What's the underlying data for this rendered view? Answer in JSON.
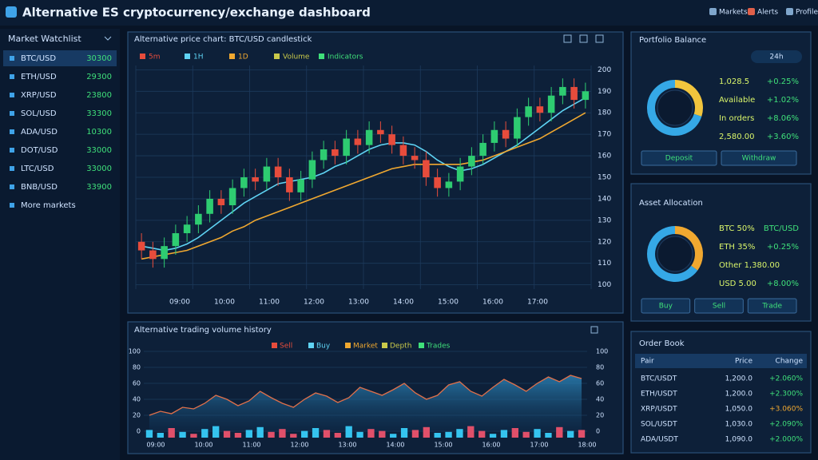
{
  "header": {
    "title": "Alternative ES cryptocurrency/exchange dashboard",
    "menu": [
      "Markets",
      "Alerts",
      "Profile"
    ]
  },
  "sidebar": {
    "title": "Market Watchlist",
    "items": [
      [
        "BTC/USD",
        "30300"
      ],
      [
        "ETH/USD",
        "29300"
      ],
      [
        "XRP/USD",
        "23800"
      ],
      [
        "SOL/USD",
        "33300"
      ],
      [
        "ADA/USD",
        "10300"
      ],
      [
        "DOT/USD",
        "33000"
      ],
      [
        "LTC/USD",
        "33000"
      ],
      [
        "BNB/USD",
        "33900"
      ],
      [
        "More markets"
      ]
    ]
  },
  "main_chart": {
    "title": "Alternative price chart: BTC/USD candlestick",
    "legend": [
      "5m",
      "1H",
      "1D",
      "Volume",
      "Indicators"
    ],
    "open": [
      120,
      116,
      112,
      118,
      124,
      128,
      133,
      140,
      137,
      145,
      150,
      148,
      155,
      150,
      143,
      149,
      158,
      163,
      160,
      168,
      165,
      172,
      170,
      165,
      160,
      158,
      150,
      145,
      148,
      155,
      160,
      166,
      172,
      168,
      178,
      183,
      180,
      188,
      192,
      186
    ],
    "close": [
      116,
      112,
      118,
      124,
      128,
      133,
      140,
      137,
      145,
      150,
      148,
      155,
      150,
      143,
      149,
      158,
      163,
      160,
      168,
      165,
      172,
      170,
      165,
      160,
      158,
      150,
      145,
      148,
      155,
      160,
      166,
      172,
      168,
      178,
      183,
      180,
      188,
      192,
      186,
      190
    ],
    "high": [
      124,
      120,
      122,
      128,
      132,
      137,
      144,
      144,
      149,
      154,
      154,
      159,
      159,
      154,
      153,
      162,
      167,
      167,
      172,
      172,
      176,
      176,
      174,
      169,
      164,
      162,
      154,
      152,
      159,
      164,
      170,
      176,
      176,
      182,
      187,
      187,
      192,
      196,
      196,
      194
    ],
    "low": [
      112,
      108,
      108,
      114,
      120,
      124,
      129,
      133,
      133,
      141,
      144,
      144,
      146,
      139,
      139,
      145,
      154,
      156,
      156,
      161,
      161,
      166,
      161,
      156,
      154,
      146,
      141,
      141,
      144,
      151,
      156,
      162,
      164,
      164,
      174,
      176,
      176,
      184,
      182,
      182
    ],
    "ma_series": [
      {
        "color": "#5fd3f3",
        "values": [
          118,
          117,
          116,
          117,
          119,
          122,
          126,
          130,
          134,
          138,
          141,
          144,
          147,
          148,
          149,
          150,
          152,
          155,
          157,
          160,
          163,
          165,
          166,
          166,
          165,
          162,
          158,
          155,
          153,
          154,
          156,
          159,
          162,
          165,
          169,
          173,
          177,
          181,
          184,
          187
        ]
      },
      {
        "color": "#f0a830",
        "values": [
          112,
          113,
          114,
          115,
          116,
          118,
          120,
          122,
          125,
          127,
          130,
          132,
          134,
          136,
          138,
          140,
          142,
          144,
          146,
          148,
          150,
          152,
          154,
          155,
          156,
          156,
          156,
          156,
          156,
          157,
          158,
          160,
          162,
          164,
          166,
          168,
          171,
          174,
          177,
          180
        ]
      }
    ],
    "ylim": [
      98,
      202
    ],
    "yticks": [
      100,
      110,
      120,
      130,
      140,
      150,
      160,
      170,
      180,
      190,
      200
    ],
    "x_labels": [
      "09:00",
      "10:00",
      "11:00",
      "12:00",
      "13:00",
      "14:00",
      "15:00",
      "16:00",
      "17:00"
    ]
  },
  "volume_chart": {
    "title": "Alternative trading volume history",
    "legend": [
      "Sell",
      "Buy",
      "Market",
      "Depth",
      "Trades"
    ],
    "values": [
      20,
      25,
      22,
      30,
      28,
      35,
      45,
      40,
      32,
      38,
      50,
      42,
      35,
      30,
      40,
      48,
      44,
      36,
      42,
      55,
      50,
      45,
      52,
      60,
      48,
      40,
      45,
      58,
      62,
      50,
      44,
      55,
      65,
      58,
      50,
      60,
      68,
      62,
      70,
      66
    ],
    "bars": [
      8,
      5,
      10,
      6,
      4,
      9,
      12,
      7,
      5,
      8,
      11,
      6,
      9,
      4,
      7,
      10,
      8,
      5,
      12,
      6,
      9,
      7,
      4,
      10,
      8,
      11,
      5,
      6,
      9,
      12,
      7,
      4,
      8,
      10,
      6,
      9,
      5,
      11,
      7,
      8
    ],
    "ylim": [
      0,
      100
    ],
    "yticks": [
      0,
      20,
      40,
      60,
      80,
      100
    ],
    "x_labels": [
      "09:00",
      "10:00",
      "11:00",
      "12:00",
      "13:00",
      "14:00",
      "15:00",
      "16:00",
      "17:00",
      "18:00"
    ]
  },
  "balance_panel": {
    "title": "Portfolio Balance",
    "period": "24h",
    "donut": {
      "values": [
        30,
        70
      ],
      "colors": [
        "#f2c53d",
        "#35a8e6"
      ]
    },
    "rows": [
      [
        "1,028.5",
        "+0.25%"
      ],
      [
        "Available",
        "+1.02%"
      ],
      [
        "In orders",
        "+8.06%"
      ],
      [
        "2,580.00",
        "+3.60%"
      ]
    ],
    "buttons": [
      "Deposit",
      "Withdraw"
    ]
  },
  "allocation_panel": {
    "title": "Asset Allocation",
    "donut": {
      "values": [
        35,
        65
      ],
      "colors": [
        "#f0a830",
        "#35a8e6"
      ]
    },
    "rows": [
      [
        "BTC 50%",
        "BTC/USD"
      ],
      [
        "ETH 35%",
        "+0.25%"
      ],
      [
        "Other 1,380.00",
        ""
      ],
      [
        "USD 5.00",
        "+8.00%"
      ]
    ],
    "buttons": [
      "Buy",
      "Sell",
      "Trade"
    ]
  },
  "orders_panel": {
    "title": "Order Book",
    "columns": [
      "Pair",
      "Price",
      "Change"
    ],
    "rows": [
      [
        "BTC/USDT",
        "1,200.0",
        "+2.060%"
      ],
      [
        "ETH/USDT",
        "1,200.0",
        "+2.300%"
      ],
      [
        "XRP/USDT",
        "1,050.0",
        "+3.060%"
      ],
      [
        "SOL/USDT",
        "1,030.0",
        "+2.090%"
      ],
      [
        "ADA/USDT",
        "1,090.0",
        "+2.000%"
      ]
    ]
  }
}
